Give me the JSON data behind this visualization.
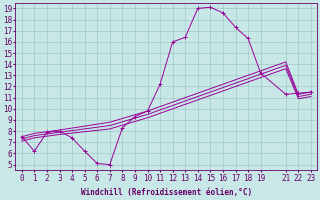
{
  "xlabel": "Windchill (Refroidissement éolien,°C)",
  "bg_color": "#c8e8e8",
  "line_color": "#990099",
  "xlim": [
    -0.5,
    23.5
  ],
  "ylim": [
    4.5,
    19.5
  ],
  "xticks": [
    0,
    1,
    2,
    3,
    4,
    5,
    6,
    7,
    8,
    9,
    10,
    11,
    12,
    13,
    14,
    15,
    16,
    17,
    18,
    19,
    21,
    22,
    23
  ],
  "yticks": [
    5,
    6,
    7,
    8,
    9,
    10,
    11,
    12,
    13,
    14,
    15,
    16,
    17,
    18,
    19
  ],
  "grid_color": "#9bbfbf",
  "line1_x": [
    0,
    1,
    2,
    3,
    4,
    5,
    6,
    7,
    8,
    9,
    10,
    11,
    12,
    13,
    14,
    15,
    16,
    17,
    18,
    19,
    21,
    22,
    23
  ],
  "line1_y": [
    7.5,
    6.2,
    7.9,
    8.0,
    7.4,
    6.2,
    5.1,
    5.0,
    8.3,
    9.3,
    9.8,
    12.2,
    16.0,
    16.4,
    19.0,
    19.1,
    18.6,
    17.3,
    16.3,
    13.2,
    11.3,
    11.4,
    11.5
  ],
  "line2_x": [
    0,
    1,
    3,
    7,
    10,
    11,
    12,
    13,
    14,
    15,
    16,
    17,
    18,
    19,
    21,
    22,
    23
  ],
  "line2_y": [
    7.5,
    7.8,
    8.1,
    8.8,
    9.8,
    10.2,
    10.6,
    11.0,
    11.4,
    11.8,
    12.2,
    12.6,
    13.0,
    13.4,
    14.2,
    11.3,
    11.5
  ],
  "line3_x": [
    0,
    1,
    3,
    7,
    10,
    11,
    12,
    13,
    14,
    15,
    16,
    17,
    18,
    19,
    21,
    22,
    23
  ],
  "line3_y": [
    7.3,
    7.6,
    7.9,
    8.5,
    9.5,
    9.9,
    10.3,
    10.7,
    11.1,
    11.5,
    11.9,
    12.3,
    12.7,
    13.1,
    13.9,
    11.1,
    11.3
  ],
  "line4_x": [
    0,
    1,
    3,
    7,
    10,
    11,
    12,
    13,
    14,
    15,
    16,
    17,
    18,
    19,
    21,
    22,
    23
  ],
  "line4_y": [
    7.1,
    7.4,
    7.7,
    8.2,
    9.2,
    9.6,
    10.0,
    10.4,
    10.8,
    11.2,
    11.6,
    12.0,
    12.4,
    12.8,
    13.6,
    10.9,
    11.1
  ],
  "font_color": "#660066",
  "font_size": 5.5,
  "tick_font_size": 5.5,
  "lw": 0.7,
  "ms": 2.5
}
